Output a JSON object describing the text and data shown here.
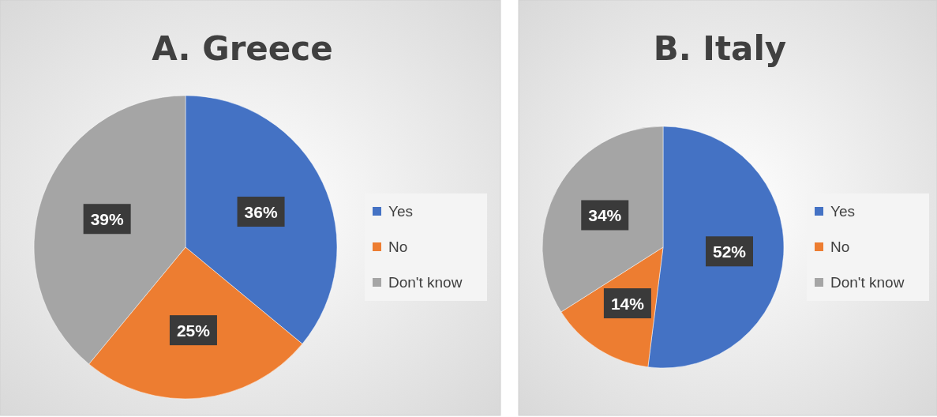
{
  "chart_data": [
    {
      "type": "pie",
      "title": "A. Greece",
      "categories": [
        "Yes",
        "No",
        "Don't know"
      ],
      "values": [
        36,
        25,
        39
      ],
      "value_labels": [
        "36%",
        "25%",
        "39%"
      ],
      "colors": [
        "#4472c4",
        "#ed7d31",
        "#a5a5a5"
      ],
      "legend": "right"
    },
    {
      "type": "pie",
      "title": "B. Italy",
      "categories": [
        "Yes",
        "No",
        "Don't know"
      ],
      "values": [
        52,
        14,
        34
      ],
      "value_labels": [
        "52%",
        "14%",
        "34%"
      ],
      "colors": [
        "#4472c4",
        "#ed7d31",
        "#a5a5a5"
      ],
      "legend": "right"
    }
  ]
}
